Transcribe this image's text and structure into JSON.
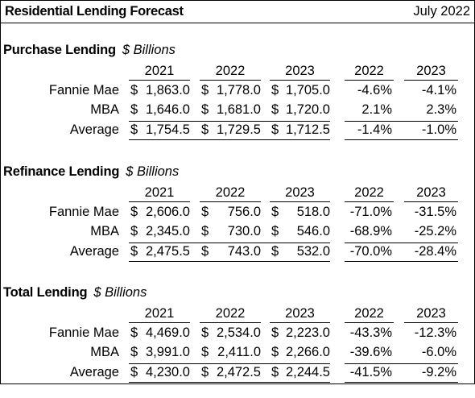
{
  "header": {
    "title": "Residential Lending Forecast",
    "date": "July 2022"
  },
  "sections": [
    {
      "title": "Purchase Lending",
      "unit": "$ Billions",
      "year_headers": [
        "2021",
        "2022",
        "2023"
      ],
      "pct_headers": [
        "2022",
        "2023"
      ],
      "rows": [
        {
          "label": "Fannie Mae",
          "values": [
            {
              "dollar": "$",
              "num": "1,863.0"
            },
            {
              "dollar": "$",
              "num": "1,778.0"
            },
            {
              "dollar": "$",
              "num": "1,705.0"
            }
          ],
          "pct": [
            "-4.6%",
            "-4.1%"
          ]
        },
        {
          "label": "MBA",
          "values": [
            {
              "dollar": "$",
              "num": "1,646.0"
            },
            {
              "dollar": "$",
              "num": "1,681.0"
            },
            {
              "dollar": "$",
              "num": "1,720.0"
            }
          ],
          "pct": [
            "2.1%",
            "2.3%"
          ]
        },
        {
          "label": "Average",
          "values": [
            {
              "dollar": "$",
              "num": "1,754.5"
            },
            {
              "dollar": "$",
              "num": "1,729.5"
            },
            {
              "dollar": "$",
              "num": "1,712.5"
            }
          ],
          "pct": [
            "-1.4%",
            "-1.0%"
          ]
        }
      ]
    },
    {
      "title": "Refinance Lending",
      "unit": "$ Billions",
      "year_headers": [
        "2021",
        "2022",
        "2023"
      ],
      "pct_headers": [
        "2022",
        "2023"
      ],
      "rows": [
        {
          "label": "Fannie Mae",
          "values": [
            {
              "dollar": "$",
              "num": "2,606.0"
            },
            {
              "dollar": "$",
              "num": "756.0"
            },
            {
              "dollar": "$",
              "num": "518.0"
            }
          ],
          "pct": [
            "-71.0%",
            "-31.5%"
          ]
        },
        {
          "label": "MBA",
          "values": [
            {
              "dollar": "$",
              "num": "2,345.0"
            },
            {
              "dollar": "$",
              "num": "730.0"
            },
            {
              "dollar": "$",
              "num": "546.0"
            }
          ],
          "pct": [
            "-68.9%",
            "-25.2%"
          ]
        },
        {
          "label": "Average",
          "values": [
            {
              "dollar": "$",
              "num": "2,475.5"
            },
            {
              "dollar": "$",
              "num": "743.0"
            },
            {
              "dollar": "$",
              "num": "532.0"
            }
          ],
          "pct": [
            "-70.0%",
            "-28.4%"
          ]
        }
      ]
    },
    {
      "title": "Total Lending",
      "unit": "$ Billions",
      "year_headers": [
        "2021",
        "2022",
        "2023"
      ],
      "pct_headers": [
        "2022",
        "2023"
      ],
      "rows": [
        {
          "label": "Fannie Mae",
          "values": [
            {
              "dollar": "$",
              "num": "4,469.0"
            },
            {
              "dollar": "$",
              "num": "2,534.0"
            },
            {
              "dollar": "$",
              "num": "2,223.0"
            }
          ],
          "pct": [
            "-43.3%",
            "-12.3%"
          ]
        },
        {
          "label": "MBA",
          "values": [
            {
              "dollar": "$",
              "num": "3,991.0"
            },
            {
              "dollar": "$",
              "num": "2,411.0"
            },
            {
              "dollar": "$",
              "num": "2,266.0"
            }
          ],
          "pct": [
            "-39.6%",
            "-6.0%"
          ]
        },
        {
          "label": "Average",
          "values": [
            {
              "dollar": "$",
              "num": "4,230.0"
            },
            {
              "dollar": "$",
              "num": "2,472.5"
            },
            {
              "dollar": "$",
              "num": "2,244.5"
            }
          ],
          "pct": [
            "-41.5%",
            "-9.2%"
          ]
        }
      ]
    }
  ]
}
